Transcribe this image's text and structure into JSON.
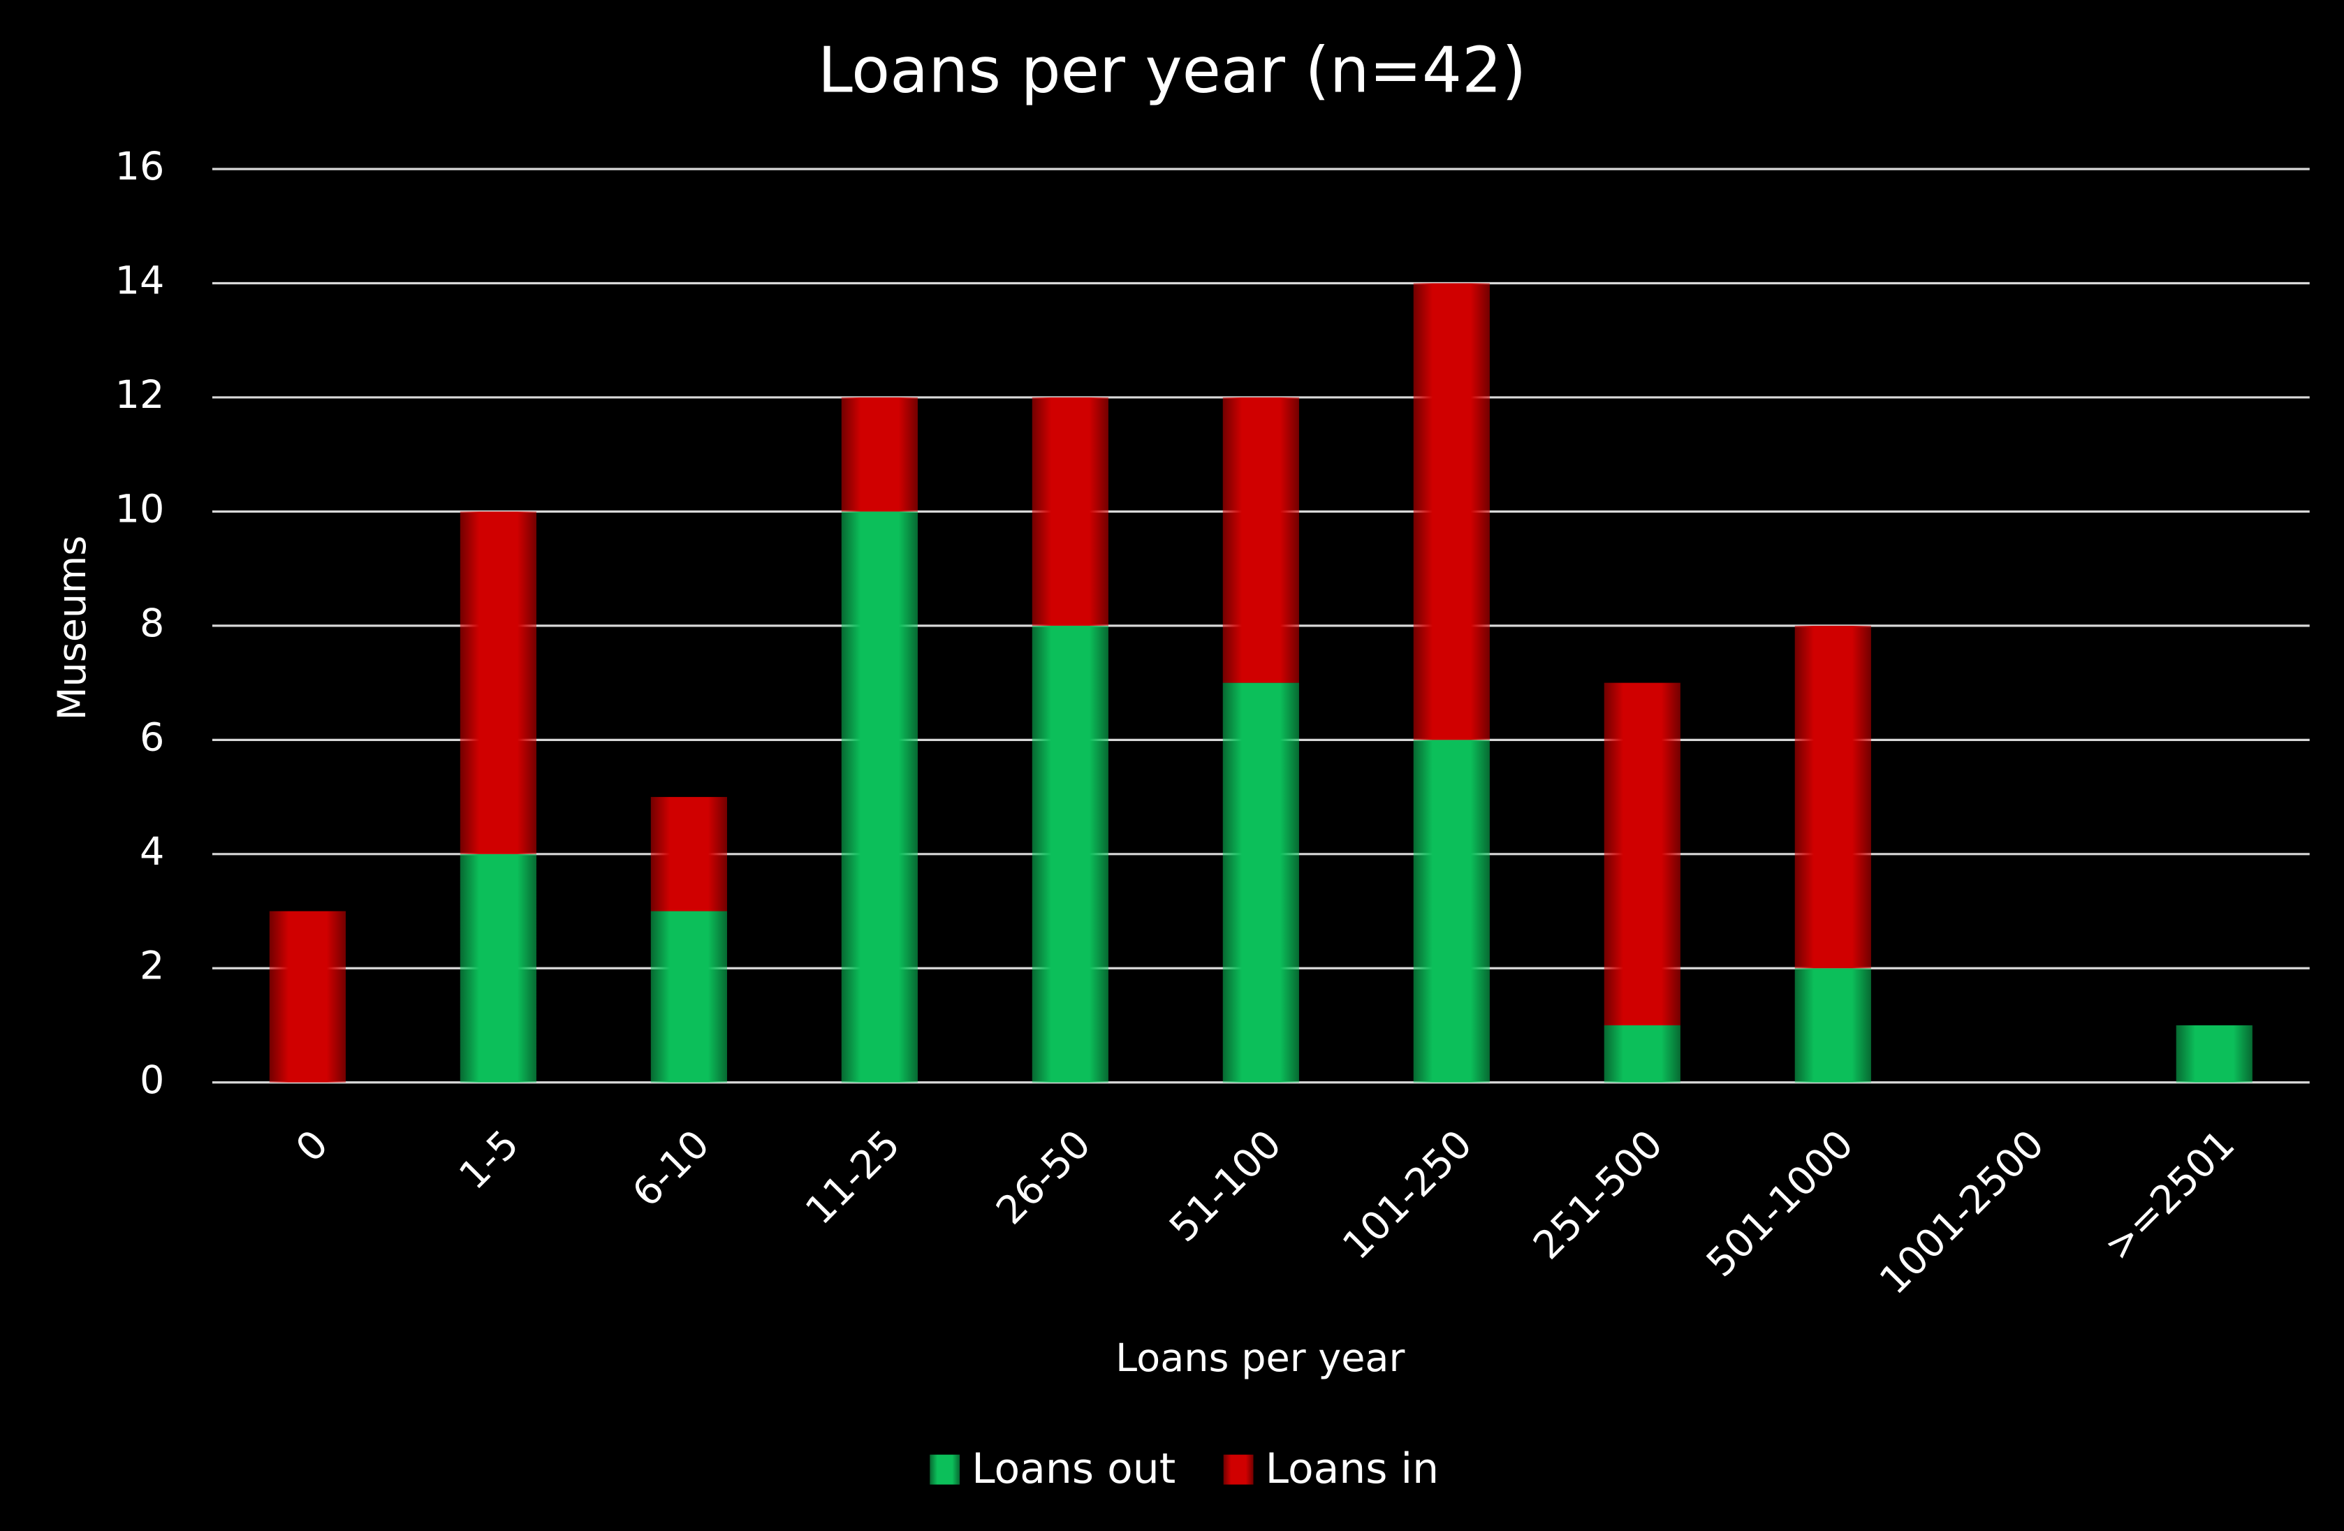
{
  "chart_data": {
    "type": "bar",
    "stacked": true,
    "title": "Loans per year (n=42)",
    "x_label": "Loans per year",
    "y_label": "Museums",
    "categories": [
      "0",
      "1-5",
      "6-10",
      "11-25",
      "26-50",
      "51-100",
      "101-250",
      "251-500",
      "501-1000",
      "1001-2500",
      ">=2501"
    ],
    "series": [
      {
        "name": "Loans out",
        "color": "#0cbf5a",
        "values": [
          0,
          4,
          3,
          10,
          8,
          7,
          6,
          1,
          2,
          0,
          1
        ]
      },
      {
        "name": "Loans in",
        "color": "#d00000",
        "values": [
          3,
          6,
          2,
          2,
          4,
          5,
          8,
          6,
          6,
          0,
          0
        ]
      }
    ],
    "ylim": [
      0,
      16
    ],
    "yticks": [
      0,
      2,
      4,
      6,
      8,
      10,
      12,
      14,
      16
    ],
    "grid": true,
    "legend": "bottom"
  }
}
